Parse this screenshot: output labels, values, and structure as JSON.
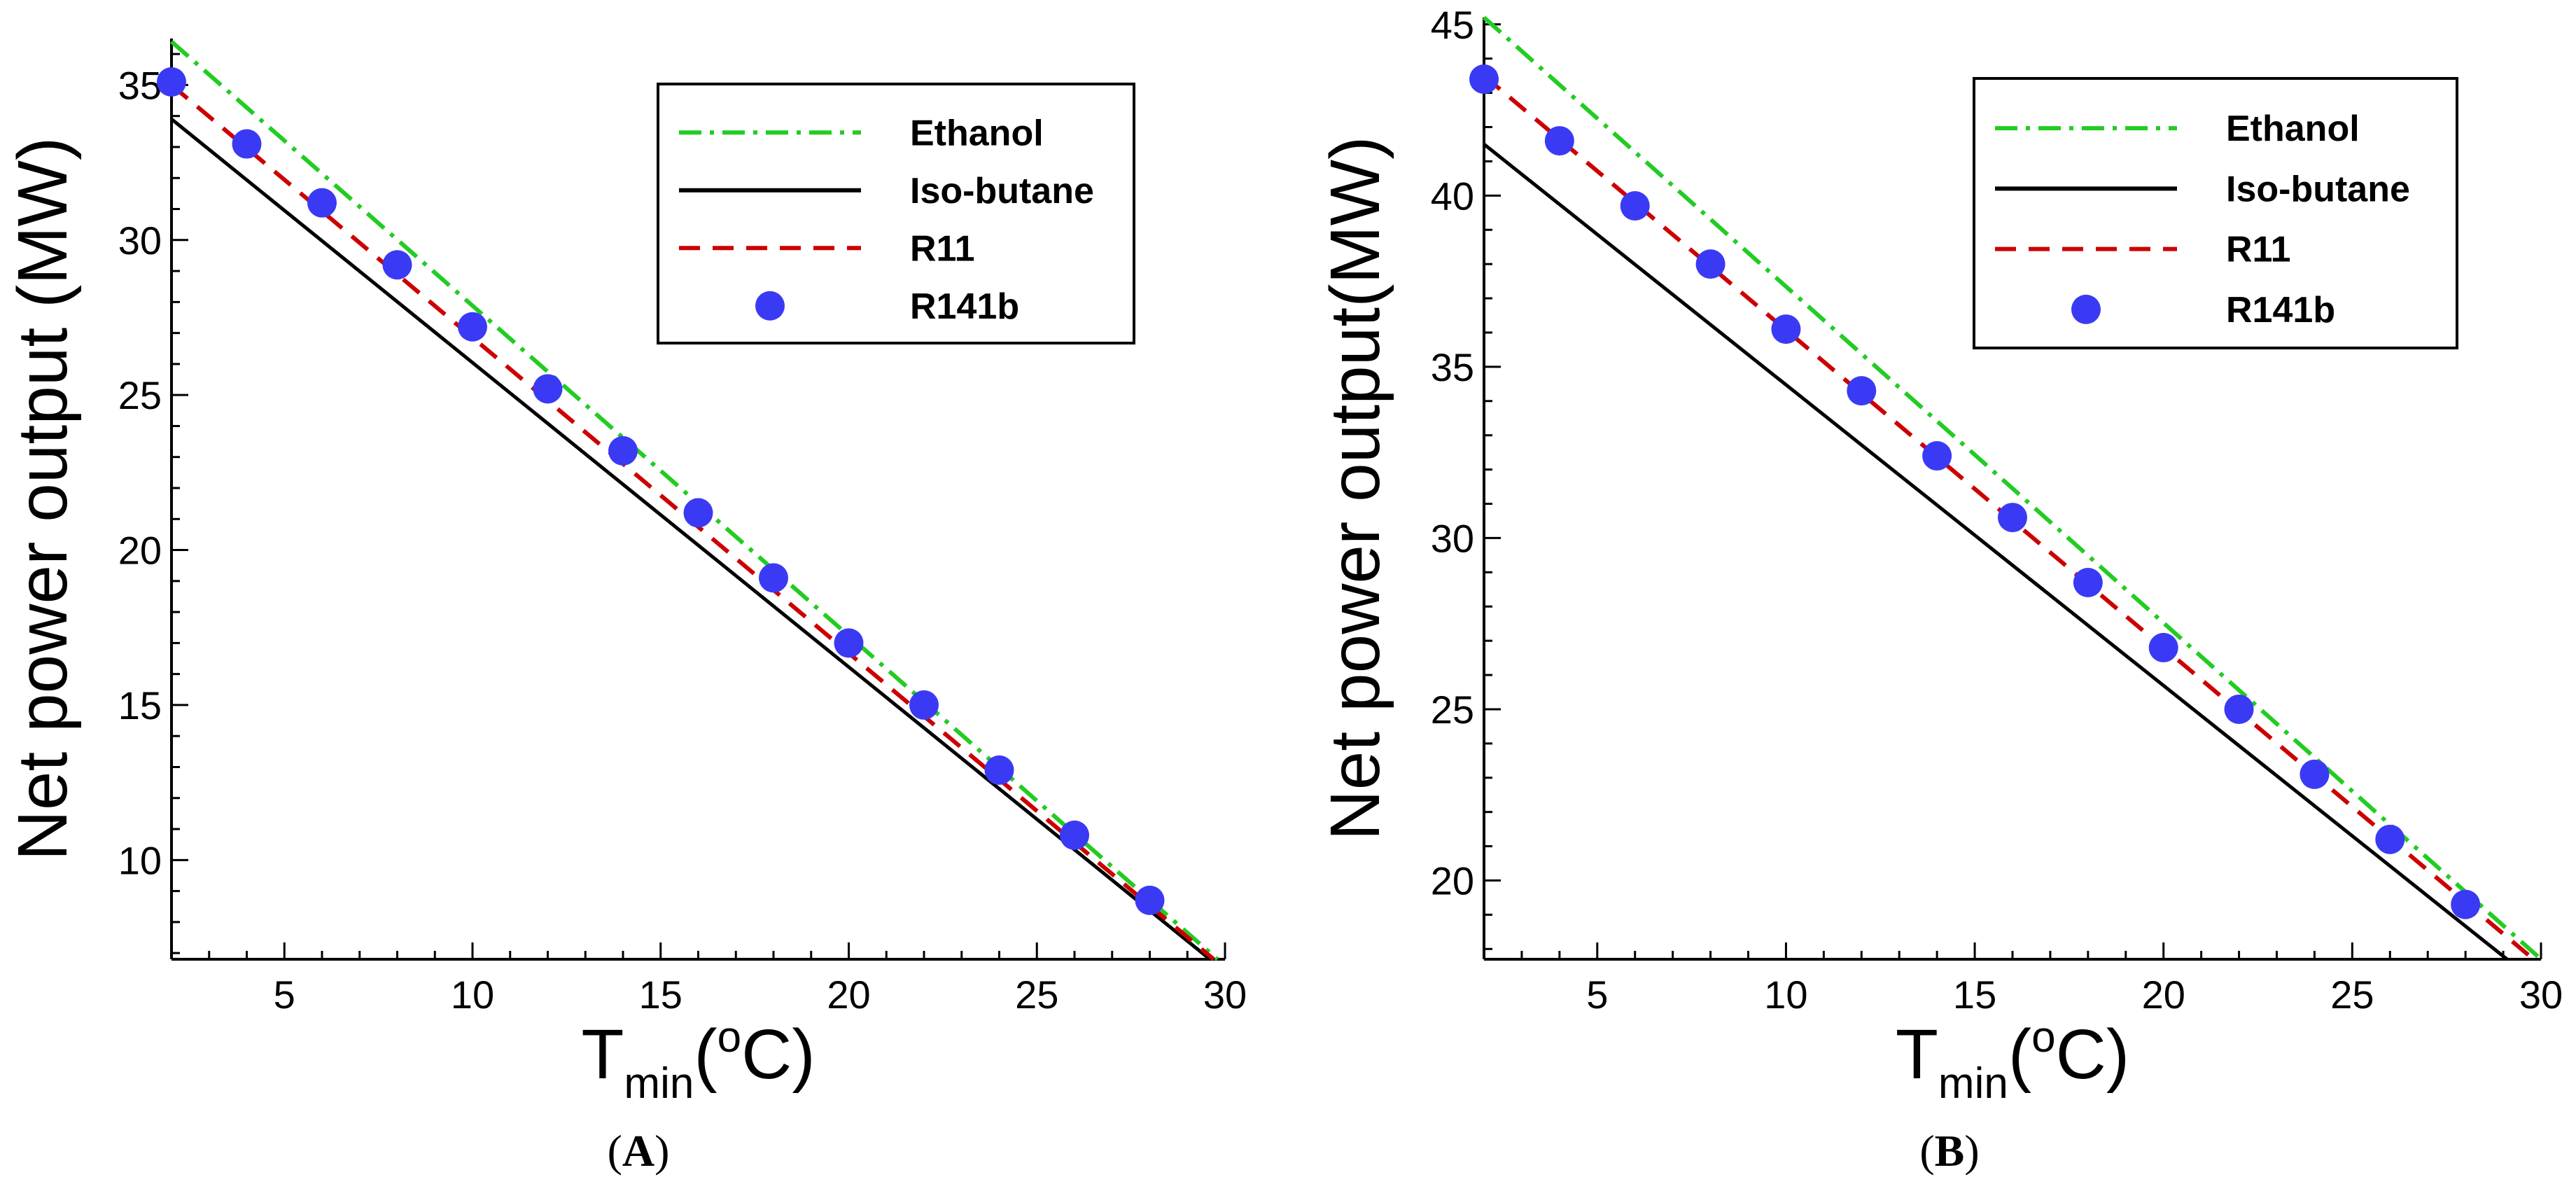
{
  "chart_data": [
    {
      "type": "line",
      "caption": {
        "open": "(",
        "letter": "A",
        "close": ")"
      },
      "xlabel": {
        "main": "T",
        "sub": "min",
        "open": "(",
        "sup": "o",
        "unit": "C)"
      },
      "ylabel": "Net power output (MW)",
      "xlim": [
        2,
        30
      ],
      "ylim": [
        6.8,
        36.5
      ],
      "xticks": [
        5,
        10,
        15,
        20,
        25,
        30
      ],
      "xtick_labels": [
        "5",
        "10",
        "15",
        "20",
        "25",
        "30"
      ],
      "yticks": [
        10,
        15,
        20,
        25,
        30,
        35
      ],
      "ytick_labels": [
        "10",
        "15",
        "20",
        "25",
        "30",
        "35"
      ],
      "legend_position": "top-right",
      "series": [
        {
          "name": "Ethanol",
          "style": "dash-dot",
          "color": "#22cc22",
          "x": [
            2,
            29.8
          ],
          "y": [
            36.4,
            6.8
          ]
        },
        {
          "name": "Iso-butane",
          "style": "solid",
          "color": "#000000",
          "x": [
            2,
            29.6
          ],
          "y": [
            33.9,
            6.8
          ]
        },
        {
          "name": "R11",
          "style": "dashed",
          "color": "#cc0000",
          "x": [
            2,
            29.7
          ],
          "y": [
            35.0,
            6.8
          ]
        },
        {
          "name": "R141b",
          "style": "markers",
          "color": "#3a3af5",
          "x": [
            2,
            4,
            6,
            8,
            10,
            12,
            14,
            16,
            18,
            20,
            22,
            24,
            26,
            28
          ],
          "y": [
            35.1,
            33.1,
            31.2,
            29.2,
            27.2,
            25.2,
            23.2,
            21.2,
            19.1,
            17.0,
            15.0,
            12.9,
            10.8,
            8.7
          ]
        }
      ]
    },
    {
      "type": "line",
      "caption": {
        "open": "(",
        "letter": "B",
        "close": ")"
      },
      "xlabel": {
        "main": "T",
        "sub": "min",
        "open": "(",
        "sup": "o",
        "unit": "C)"
      },
      "ylabel": "Net power output(MW)",
      "xlim": [
        2,
        30
      ],
      "ylim": [
        17.7,
        45.2
      ],
      "xticks": [
        5,
        10,
        15,
        20,
        25,
        30
      ],
      "xtick_labels": [
        "5",
        "10",
        "15",
        "20",
        "25",
        "30"
      ],
      "yticks": [
        20,
        25,
        30,
        35,
        40,
        45
      ],
      "ytick_labels": [
        "20",
        "25",
        "30",
        "35",
        "40",
        "45"
      ],
      "legend_position": "top-right",
      "series": [
        {
          "name": "Ethanol",
          "style": "dash-dot",
          "color": "#22cc22",
          "x": [
            2,
            30
          ],
          "y": [
            45.2,
            17.7
          ]
        },
        {
          "name": "Iso-butane",
          "style": "solid",
          "color": "#000000",
          "x": [
            2,
            29.1
          ],
          "y": [
            41.5,
            17.7
          ]
        },
        {
          "name": "R11",
          "style": "dashed",
          "color": "#cc0000",
          "x": [
            2,
            29.8
          ],
          "y": [
            43.5,
            17.7
          ]
        },
        {
          "name": "R141b",
          "style": "markers",
          "color": "#3a3af5",
          "x": [
            2,
            4,
            6,
            8,
            10,
            12,
            14,
            16,
            18,
            20,
            22,
            24,
            26,
            28
          ],
          "y": [
            43.4,
            41.6,
            39.7,
            38.0,
            36.1,
            34.3,
            32.4,
            30.6,
            28.7,
            26.8,
            25.0,
            23.1,
            21.2,
            19.3
          ]
        }
      ]
    }
  ]
}
